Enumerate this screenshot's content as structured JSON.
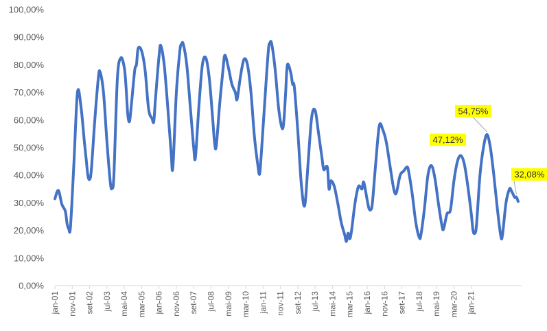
{
  "chart_data": {
    "type": "line",
    "title": "",
    "xlabel": "",
    "ylabel": "",
    "ylim": [
      0,
      100
    ],
    "grid": false,
    "legend": "none",
    "y_ticks": [
      "0,00%",
      "10,00%",
      "20,00%",
      "30,00%",
      "40,00%",
      "50,00%",
      "60,00%",
      "70,00%",
      "80,00%",
      "90,00%",
      "100,00%"
    ],
    "x_ticks": [
      "jan-01",
      "nov-01",
      "set-02",
      "jul-03",
      "mai-04",
      "mar-05",
      "jan-06",
      "nov-06",
      "set-07",
      "jul-08",
      "mai-09",
      "mar-10",
      "jan-11",
      "nov-11",
      "set-12",
      "jul-13",
      "mai-14",
      "mar-15",
      "jan-16",
      "nov-16",
      "set-17",
      "jul-18",
      "mai-19",
      "mar-20",
      "jan-21"
    ],
    "series_color": "#4472C4",
    "series": [
      {
        "points": [
          [
            "2001-01",
            31.5
          ],
          [
            "2001-03",
            34.5
          ],
          [
            "2001-05",
            29.5
          ],
          [
            "2001-07",
            27
          ],
          [
            "2001-08",
            22.5
          ],
          [
            "2001-09",
            20.5
          ],
          [
            "2001-10",
            21.5
          ],
          [
            "2001-12",
            45
          ],
          [
            "2002-02",
            70
          ],
          [
            "2002-04",
            65
          ],
          [
            "2002-06",
            52
          ],
          [
            "2002-07",
            46
          ],
          [
            "2002-08",
            40
          ],
          [
            "2002-09",
            38.5
          ],
          [
            "2002-10",
            42
          ],
          [
            "2002-12",
            60
          ],
          [
            "2003-02",
            75
          ],
          [
            "2003-03",
            77.5
          ],
          [
            "2003-05",
            70
          ],
          [
            "2003-07",
            52
          ],
          [
            "2003-09",
            37
          ],
          [
            "2003-10",
            35.5
          ],
          [
            "2003-11",
            40
          ],
          [
            "2004-01",
            75
          ],
          [
            "2004-03",
            82.5
          ],
          [
            "2004-05",
            79
          ],
          [
            "2004-06",
            72
          ],
          [
            "2004-07",
            62
          ],
          [
            "2004-08",
            59.5
          ],
          [
            "2004-09",
            65
          ],
          [
            "2004-11",
            78
          ],
          [
            "2004-12",
            80
          ],
          [
            "2005-01",
            86
          ],
          [
            "2005-03",
            85
          ],
          [
            "2005-05",
            78
          ],
          [
            "2005-07",
            64
          ],
          [
            "2005-09",
            60.5
          ],
          [
            "2005-10",
            59.5
          ],
          [
            "2005-11",
            68
          ],
          [
            "2006-01",
            83
          ],
          [
            "2006-02",
            87
          ],
          [
            "2006-04",
            80
          ],
          [
            "2006-06",
            65
          ],
          [
            "2006-08",
            48
          ],
          [
            "2006-09",
            43
          ],
          [
            "2006-11",
            70
          ],
          [
            "2007-01",
            85
          ],
          [
            "2007-02",
            87.5
          ],
          [
            "2007-03",
            87.5
          ],
          [
            "2007-05",
            80
          ],
          [
            "2007-07",
            65
          ],
          [
            "2007-09",
            50
          ],
          [
            "2007-10",
            46.5
          ],
          [
            "2007-12",
            65
          ],
          [
            "2008-02",
            80
          ],
          [
            "2008-04",
            82.5
          ],
          [
            "2008-06",
            75
          ],
          [
            "2008-08",
            60
          ],
          [
            "2008-09",
            52
          ],
          [
            "2008-10",
            50.5
          ],
          [
            "2008-12",
            66
          ],
          [
            "2009-02",
            79
          ],
          [
            "2009-03",
            83.5
          ],
          [
            "2009-05",
            79
          ],
          [
            "2009-07",
            73
          ],
          [
            "2009-09",
            70
          ],
          [
            "2009-10",
            67.5
          ],
          [
            "2009-12",
            76
          ],
          [
            "2010-02",
            82
          ],
          [
            "2010-04",
            80
          ],
          [
            "2010-06",
            70
          ],
          [
            "2010-08",
            54
          ],
          [
            "2010-10",
            43.5
          ],
          [
            "2010-11",
            40.5
          ],
          [
            "2010-12",
            48
          ],
          [
            "2011-02",
            67
          ],
          [
            "2011-04",
            85
          ],
          [
            "2011-05",
            88
          ],
          [
            "2011-06",
            87.5
          ],
          [
            "2011-08",
            78
          ],
          [
            "2011-10",
            64
          ],
          [
            "2011-12",
            57
          ],
          [
            "2012-01",
            60
          ],
          [
            "2012-02",
            70
          ],
          [
            "2012-03",
            80
          ],
          [
            "2012-05",
            77
          ],
          [
            "2012-06",
            73
          ],
          [
            "2012-07",
            72
          ],
          [
            "2012-09",
            56
          ],
          [
            "2012-11",
            37
          ],
          [
            "2013-01",
            29
          ],
          [
            "2013-03",
            45
          ],
          [
            "2013-05",
            61
          ],
          [
            "2013-07",
            63.5
          ],
          [
            "2013-09",
            55
          ],
          [
            "2013-11",
            46
          ],
          [
            "2013-12",
            42
          ],
          [
            "2014-02",
            43
          ],
          [
            "2014-03",
            35
          ],
          [
            "2014-04",
            38
          ],
          [
            "2014-06",
            36
          ],
          [
            "2014-08",
            30
          ],
          [
            "2014-10",
            23
          ],
          [
            "2014-12",
            18.5
          ],
          [
            "2015-01",
            16
          ],
          [
            "2015-02",
            19
          ],
          [
            "2015-03",
            17
          ],
          [
            "2015-04",
            20
          ],
          [
            "2015-06",
            30
          ],
          [
            "2015-08",
            36
          ],
          [
            "2015-10",
            35
          ],
          [
            "2015-11",
            37.5
          ],
          [
            "2016-01",
            31
          ],
          [
            "2016-02",
            28
          ],
          [
            "2016-03",
            27.5
          ],
          [
            "2016-04",
            30
          ],
          [
            "2016-06",
            45
          ],
          [
            "2016-08",
            58
          ],
          [
            "2016-10",
            56.5
          ],
          [
            "2016-12",
            52
          ],
          [
            "2017-02",
            44
          ],
          [
            "2017-04",
            36
          ],
          [
            "2017-05",
            33.5
          ],
          [
            "2017-06",
            34
          ],
          [
            "2017-08",
            40
          ],
          [
            "2017-10",
            41.5
          ],
          [
            "2017-12",
            43
          ],
          [
            "2018-01",
            41
          ],
          [
            "2018-03",
            33
          ],
          [
            "2018-05",
            23
          ],
          [
            "2018-07",
            17.5
          ],
          [
            "2018-08",
            18.5
          ],
          [
            "2018-10",
            28
          ],
          [
            "2018-12",
            40
          ],
          [
            "2019-02",
            43.5
          ],
          [
            "2019-04",
            39
          ],
          [
            "2019-06",
            30
          ],
          [
            "2019-08",
            22
          ],
          [
            "2019-09",
            20.5
          ],
          [
            "2019-11",
            26
          ],
          [
            "2020-01",
            27.5
          ],
          [
            "2020-03",
            38
          ],
          [
            "2020-05",
            45
          ],
          [
            "2020-07",
            47.12
          ],
          [
            "2020-09",
            44
          ],
          [
            "2020-11",
            36
          ],
          [
            "2021-01",
            26
          ],
          [
            "2021-02",
            20
          ],
          [
            "2021-03",
            19
          ],
          [
            "2021-04",
            22
          ],
          [
            "2021-06",
            40
          ],
          [
            "2021-08",
            50
          ],
          [
            "2021-10",
            54.75
          ],
          [
            "2021-12",
            50
          ],
          [
            "2022-02",
            40
          ],
          [
            "2022-04",
            28
          ],
          [
            "2022-06",
            18
          ],
          [
            "2022-07",
            18.5
          ],
          [
            "2022-09",
            30
          ],
          [
            "2022-11",
            35
          ],
          [
            "2022-12",
            34.5
          ],
          [
            "2023-02",
            32
          ],
          [
            "2023-03",
            32.08
          ],
          [
            "2023-04",
            30.5
          ]
        ]
      }
    ],
    "annotations": [
      {
        "label": "47,12%",
        "at": "2020-07"
      },
      {
        "label": "54,75%",
        "at": "2021-10"
      },
      {
        "label": "32,08%",
        "at": "2023-03"
      }
    ]
  }
}
